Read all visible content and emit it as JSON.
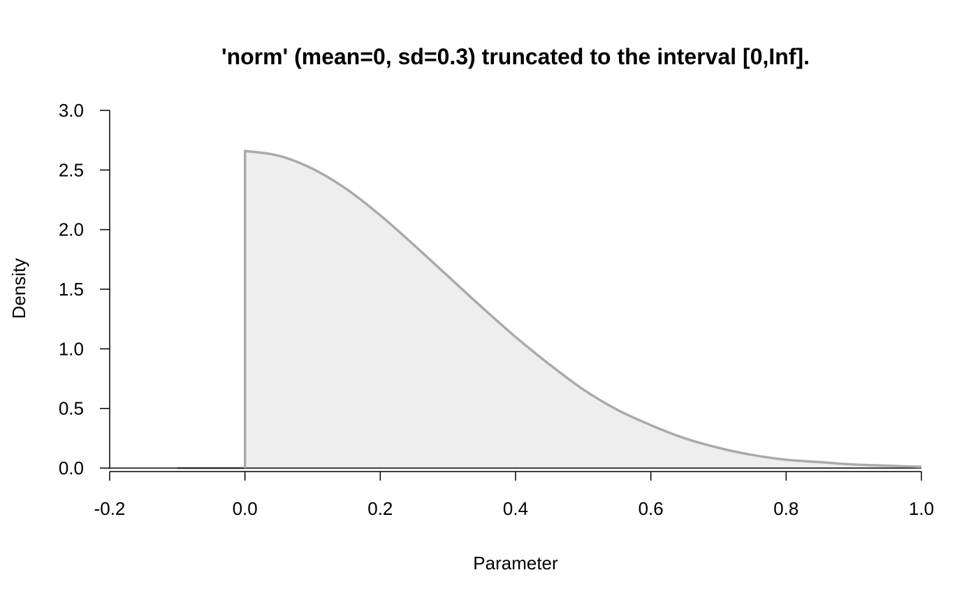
{
  "chart_data": {
    "type": "area",
    "title": "'norm' (mean=0, sd=0.3) truncated to the interval [0,Inf].",
    "xlabel": "Parameter",
    "ylabel": "Density",
    "xlim": [
      -0.2,
      1.0
    ],
    "ylim": [
      0,
      3.0
    ],
    "x_ticks": [
      "-0.2",
      "0.0",
      "0.2",
      "0.4",
      "0.6",
      "0.8",
      "1.0"
    ],
    "y_ticks": [
      "0.0",
      "0.5",
      "1.0",
      "1.5",
      "2.0",
      "2.5",
      "3.0"
    ],
    "grid": false,
    "legend": "none",
    "series": [
      {
        "x": [
          -0.1,
          0.0,
          0.0,
          0.05,
          0.1,
          0.15,
          0.2,
          0.25,
          0.3,
          0.35,
          0.4,
          0.45,
          0.5,
          0.55,
          0.6,
          0.65,
          0.7,
          0.75,
          0.8,
          0.85,
          0.9,
          0.95,
          1.0
        ],
        "y": [
          0.0,
          0.0,
          2.66,
          2.62,
          2.51,
          2.34,
          2.12,
          1.87,
          1.61,
          1.35,
          1.1,
          0.87,
          0.66,
          0.49,
          0.36,
          0.25,
          0.17,
          0.11,
          0.07,
          0.05,
          0.03,
          0.02,
          0.01
        ]
      }
    ],
    "colors": {
      "line": "#aaaaaa",
      "fill": "#eeeeee",
      "axis": "#000000"
    }
  }
}
